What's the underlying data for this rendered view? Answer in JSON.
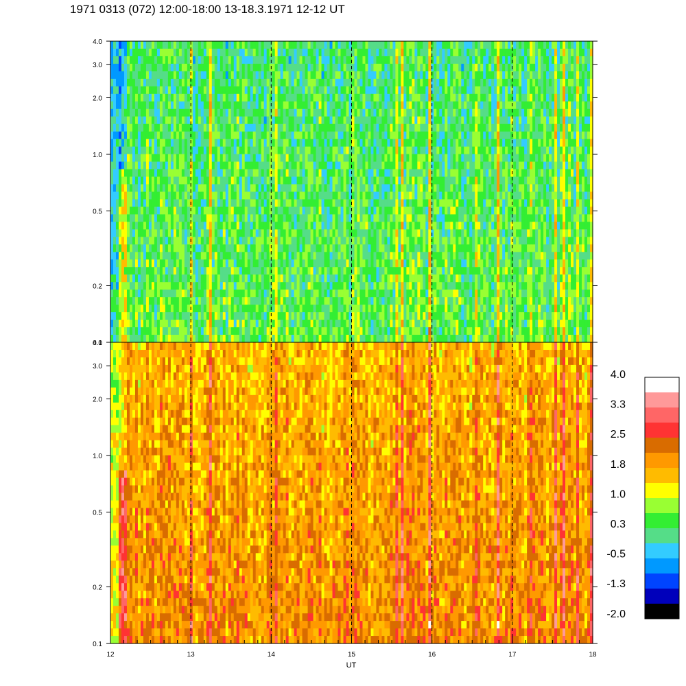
{
  "title": "1971 0313 (072) 12:00-18:00 13-18.3.1971  12-12 UT",
  "chart_data": {
    "type": "heatmap",
    "panels": [
      {
        "name": "",
        "yaxis": {
          "scale": "log",
          "range": [
            0.1,
            4.0
          ],
          "ticks": [
            "0.1",
            "0.2",
            "0.5",
            "1.0",
            "2.0",
            "3.0",
            "4.0"
          ]
        },
        "base_level": 0.35,
        "grid": "dashed vertical lines at each hour"
      },
      {
        "name": "",
        "yaxis": {
          "scale": "log",
          "range": [
            0.1,
            4.0
          ],
          "ticks": [
            "0.1",
            "0.2",
            "0.5",
            "1.0",
            "2.0",
            "3.0",
            "4.0"
          ]
        },
        "base_level": 1.85,
        "grid": "dashed vertical lines at each hour"
      }
    ],
    "xaxis": {
      "label": "UT",
      "range": [
        12,
        18
      ],
      "ticks": [
        "12",
        "13",
        "14",
        "15",
        "16",
        "17",
        "18"
      ],
      "dashed_lines": [
        13,
        14,
        15,
        16,
        17
      ]
    },
    "colorbar": {
      "labels": [
        "4.0",
        "3.3",
        "2.5",
        "1.8",
        "1.0",
        "0.3",
        "-0.5",
        "-1.3",
        "-2.0"
      ],
      "colors_top_to_bottom": [
        "#ffffff",
        "#ff9999",
        "#ff6666",
        "#ff3333",
        "#d96c00",
        "#ff9900",
        "#ffbb00",
        "#ffff00",
        "#99ff33",
        "#33ee33",
        "#55dd88",
        "#33ccff",
        "#0099ff",
        "#0044ff",
        "#0000bb",
        "#000000"
      ]
    }
  }
}
